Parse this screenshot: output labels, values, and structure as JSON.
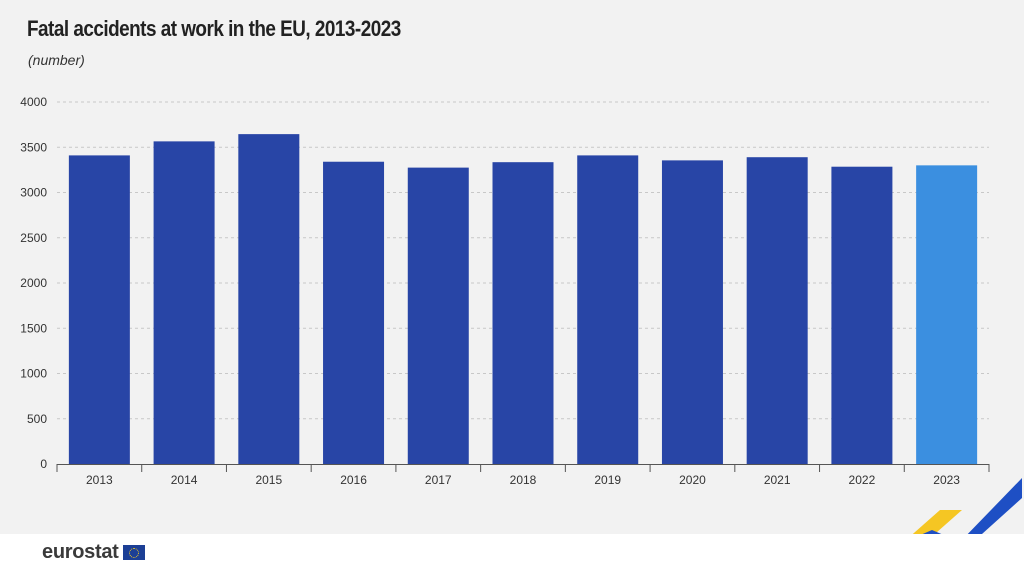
{
  "title": "Fatal accidents at work in the EU, 2013-2023",
  "subtitle": "(number)",
  "logo_text": "eurostat",
  "colors": {
    "bar": "#2845a6",
    "highlight": "#3b8fe0",
    "accent_yellow": "#f5c623",
    "accent_blue": "#1e4fc4"
  },
  "chart_data": {
    "type": "bar",
    "title": "Fatal accidents at work in the EU, 2013-2023",
    "subtitle": "(number)",
    "categories": [
      "2013",
      "2014",
      "2015",
      "2016",
      "2017",
      "2018",
      "2019",
      "2020",
      "2021",
      "2022",
      "2023"
    ],
    "values": [
      3410,
      3565,
      3645,
      3340,
      3275,
      3335,
      3410,
      3355,
      3390,
      3285,
      3300
    ],
    "highlight_category": "2023",
    "ylim": [
      0,
      4000
    ],
    "yticks": [
      0,
      500,
      1000,
      1500,
      2000,
      2500,
      3000,
      3500,
      4000
    ],
    "grid": true,
    "legend": "none"
  }
}
